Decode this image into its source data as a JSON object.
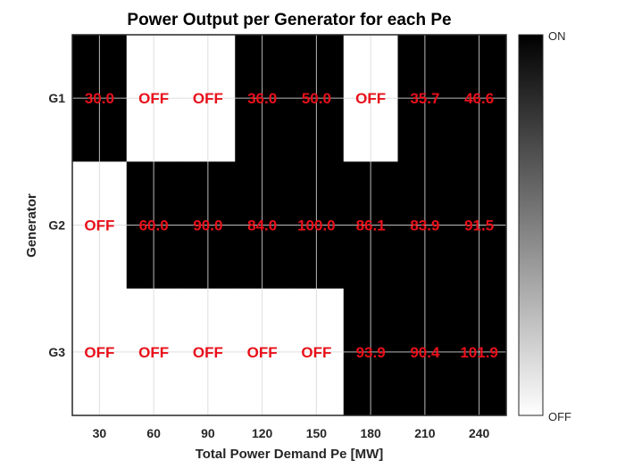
{
  "chart_data": {
    "type": "heatmap",
    "title": "Power Output per Generator for each Pe",
    "xlabel": "Total Power Demand Pe [MW]",
    "ylabel": "Generator",
    "x": [
      30,
      60,
      90,
      120,
      150,
      180,
      210,
      240
    ],
    "y": [
      "G1",
      "G2",
      "G3"
    ],
    "status": [
      [
        1,
        0,
        0,
        1,
        1,
        0,
        1,
        1
      ],
      [
        0,
        1,
        1,
        1,
        1,
        1,
        1,
        1
      ],
      [
        0,
        0,
        0,
        0,
        0,
        1,
        1,
        1
      ]
    ],
    "labels": [
      [
        "30.0",
        "OFF",
        "OFF",
        "36.0",
        "50.0",
        "OFF",
        "35.7",
        "46.6"
      ],
      [
        "OFF",
        "60.0",
        "90.0",
        "84.0",
        "100.0",
        "86.1",
        "83.9",
        "91.5"
      ],
      [
        "OFF",
        "OFF",
        "OFF",
        "OFF",
        "OFF",
        "93.9",
        "90.4",
        "101.9"
      ]
    ],
    "colorbar": {
      "top_label": "ON",
      "bottom_label": "OFF"
    },
    "grid": true,
    "colors": {
      "on": "#000000",
      "off": "#ffffff",
      "label": "#e8101a",
      "grid": "#d9d9d9"
    }
  }
}
